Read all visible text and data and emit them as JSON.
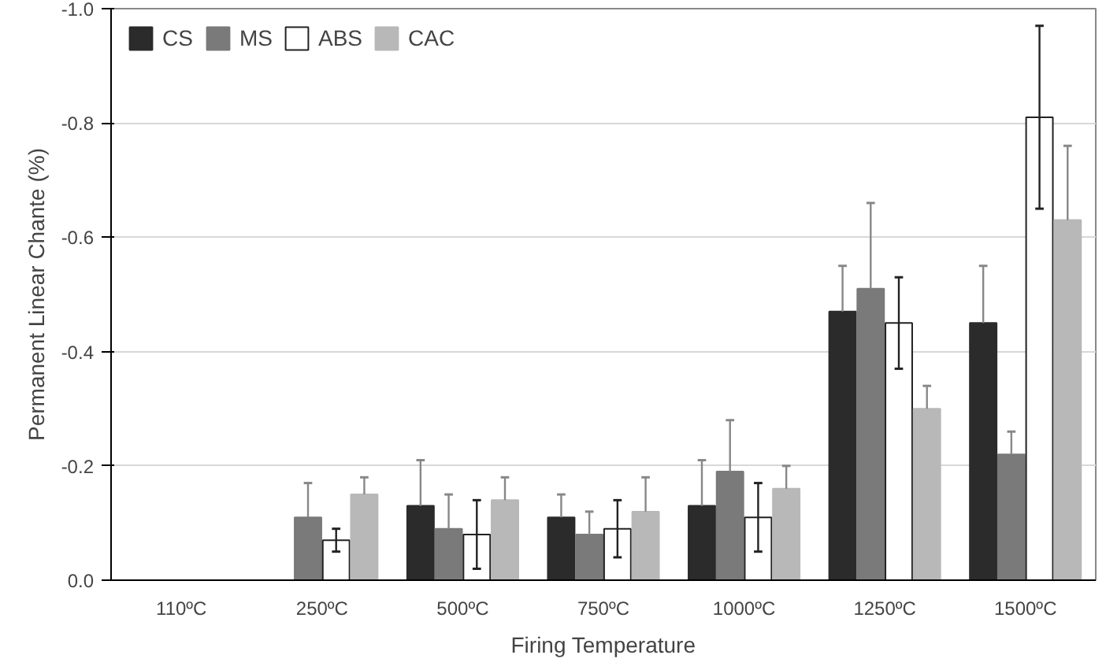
{
  "chart_data": {
    "type": "bar",
    "xlabel": "Firing Temperature",
    "ylabel": "Permanent Linear Chante (%)",
    "categories": [
      "110ºC",
      "250ºC",
      "500ºC",
      "750ºC",
      "1000ºC",
      "1250ºC",
      "1500ºC"
    ],
    "series": [
      {
        "name": "CS",
        "color": "#2b2b2b",
        "values": [
          null,
          null,
          -0.13,
          -0.11,
          -0.13,
          -0.47,
          -0.45
        ],
        "errors": [
          null,
          null,
          [
            -0.21,
            -0.13
          ],
          [
            -0.15,
            -0.11
          ],
          [
            -0.21,
            -0.13
          ],
          [
            -0.55,
            -0.47
          ],
          [
            -0.55,
            -0.45
          ]
        ]
      },
      {
        "name": "MS",
        "color": "#7a7a7a",
        "values": [
          null,
          -0.11,
          -0.09,
          -0.08,
          -0.19,
          -0.51,
          -0.22
        ],
        "errors": [
          null,
          [
            -0.17,
            -0.11
          ],
          [
            -0.15,
            -0.09
          ],
          [
            -0.12,
            -0.08
          ],
          [
            -0.28,
            -0.19
          ],
          [
            -0.66,
            -0.51
          ],
          [
            -0.26,
            -0.22
          ]
        ]
      },
      {
        "name": "ABS",
        "color": "#ffffff",
        "values": [
          null,
          -0.07,
          -0.08,
          -0.09,
          -0.11,
          -0.45,
          -0.81
        ],
        "errors": [
          null,
          0.02,
          0.06,
          0.05,
          0.06,
          0.08,
          0.16
        ]
      },
      {
        "name": "CAC",
        "color": "#b8b8b8",
        "values": [
          null,
          -0.15,
          -0.14,
          -0.12,
          -0.16,
          -0.3,
          -0.63
        ],
        "errors": [
          null,
          [
            -0.18,
            -0.15
          ],
          [
            -0.18,
            -0.14
          ],
          [
            -0.18,
            -0.12
          ],
          [
            -0.2,
            -0.16
          ],
          [
            -0.34,
            -0.3
          ],
          [
            -0.76,
            -0.63
          ]
        ]
      }
    ],
    "ylim": [
      0,
      -1.0
    ],
    "yticks": [
      {
        "value": 0,
        "label": "0.0"
      },
      -0.2,
      -0.4,
      -0.6,
      -0.8,
      {
        "value": -1.0,
        "label": "-1.0"
      }
    ],
    "grid": "y",
    "legend": "top left"
  }
}
